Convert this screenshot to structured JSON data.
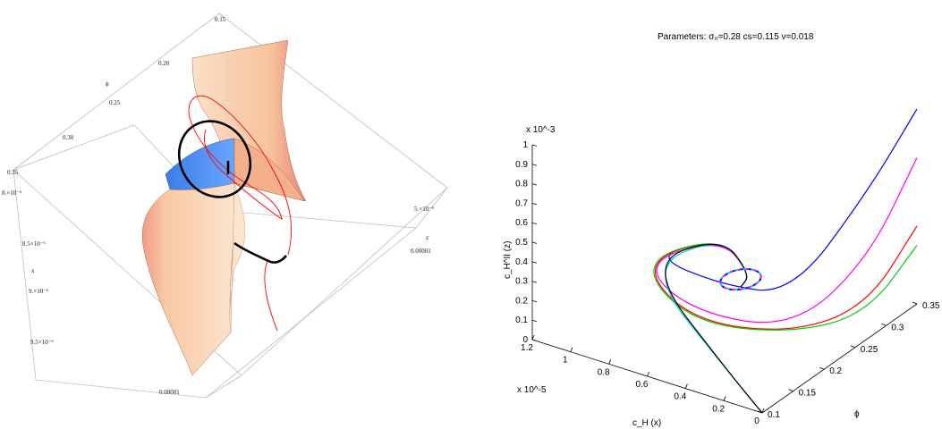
{
  "left_plot": {
    "x_axis": {
      "label": "x",
      "ticks": [
        "8.×10⁻⁶",
        "8.5×10⁻⁶",
        "9.×10⁻⁶",
        "9.5×10⁻⁶",
        "0.00001"
      ]
    },
    "phi_axis": {
      "label": "ϕ",
      "ticks": [
        "0.15",
        "0.20",
        "0.25",
        "0.30",
        "0.35"
      ]
    },
    "z_axis": {
      "label": "z",
      "ticks": [
        "5.×10⁻⁶",
        "0.00001"
      ]
    },
    "colors": {
      "surface_warm": "#f6c9a0",
      "surface_edge": "#e07868",
      "surface_cool": "#4a8df0",
      "trajectory_thick": "#000000",
      "trajectory_thin": "#ff0000"
    }
  },
  "chart_data": {
    "type": "line",
    "title": "Parameters: σ₀=0.28 cs=0.115 ν=0.018",
    "parameters": {
      "sigma_0": 0.28,
      "cs": 0.115,
      "nu": 0.018
    },
    "projection": "3d",
    "axes": {
      "x": {
        "label": "c_H (x)",
        "multiplier": "x 10^-5",
        "range": [
          0,
          1.2
        ],
        "ticks": [
          "0",
          "0.2",
          "0.4",
          "0.6",
          "0.8",
          "1",
          "1.2"
        ]
      },
      "y": {
        "label": "ϕ",
        "range": [
          0.1,
          0.35
        ],
        "ticks": [
          "0.1",
          "0.15",
          "0.2",
          "0.25",
          "0.3",
          "0.35"
        ]
      },
      "z": {
        "label": "c_H^II (z)",
        "multiplier": "x 10^-3",
        "range": [
          0,
          1
        ],
        "ticks": [
          "0",
          "0.1",
          "0.2",
          "0.3",
          "0.4",
          "0.5",
          "0.6",
          "0.7",
          "0.8",
          "0.9",
          "1"
        ]
      }
    },
    "series": [
      {
        "color": "#0000ff",
        "points": [
          [
            0.0,
            0.35,
            1.0
          ],
          [
            0.1,
            0.3,
            0.65
          ],
          [
            0.3,
            0.24,
            0.2
          ],
          [
            0.6,
            0.22,
            0.2
          ],
          [
            0.9,
            0.2,
            0.3
          ],
          [
            0.6,
            0.22,
            0.44
          ],
          [
            0.45,
            0.22,
            0.3
          ],
          [
            0.5,
            0.22,
            0.22
          ]
        ]
      },
      {
        "color": "#ff00ff",
        "points": [
          [
            0.0,
            0.35,
            0.75
          ],
          [
            0.1,
            0.3,
            0.3
          ],
          [
            0.3,
            0.24,
            0.02
          ],
          [
            0.7,
            0.2,
            0.08
          ],
          [
            0.92,
            0.19,
            0.28
          ],
          [
            0.6,
            0.22,
            0.44
          ],
          [
            0.45,
            0.22,
            0.3
          ],
          [
            0.5,
            0.22,
            0.22
          ]
        ]
      },
      {
        "color": "#ff0000",
        "points": [
          [
            0.0,
            0.35,
            0.4
          ],
          [
            0.1,
            0.3,
            0.07
          ],
          [
            0.3,
            0.24,
            0.0
          ],
          [
            0.7,
            0.2,
            0.03
          ],
          [
            0.93,
            0.19,
            0.28
          ],
          [
            0.6,
            0.22,
            0.45
          ],
          [
            0.45,
            0.22,
            0.3
          ],
          [
            0.5,
            0.22,
            0.22
          ]
        ]
      },
      {
        "color": "#00cc00",
        "points": [
          [
            0.0,
            0.35,
            0.3
          ],
          [
            0.1,
            0.3,
            0.03
          ],
          [
            0.3,
            0.24,
            0.0
          ],
          [
            0.7,
            0.2,
            0.02
          ],
          [
            0.94,
            0.19,
            0.28
          ],
          [
            0.6,
            0.22,
            0.45
          ],
          [
            0.45,
            0.22,
            0.3
          ],
          [
            0.5,
            0.22,
            0.22
          ]
        ]
      },
      {
        "color": "#00cccc",
        "points": [
          [
            0.0,
            0.1,
            0.0
          ],
          [
            0.3,
            0.14,
            0.02
          ],
          [
            0.9,
            0.19,
            0.26
          ],
          [
            0.6,
            0.22,
            0.45
          ],
          [
            0.45,
            0.22,
            0.3
          ],
          [
            0.5,
            0.22,
            0.22
          ]
        ]
      },
      {
        "color": "#000000",
        "points": [
          [
            0.0,
            0.1,
            0.0
          ],
          [
            0.3,
            0.14,
            0.02
          ],
          [
            0.9,
            0.19,
            0.28
          ],
          [
            0.6,
            0.22,
            0.45
          ],
          [
            0.45,
            0.22,
            0.3
          ],
          [
            0.5,
            0.22,
            0.22
          ]
        ]
      }
    ]
  }
}
